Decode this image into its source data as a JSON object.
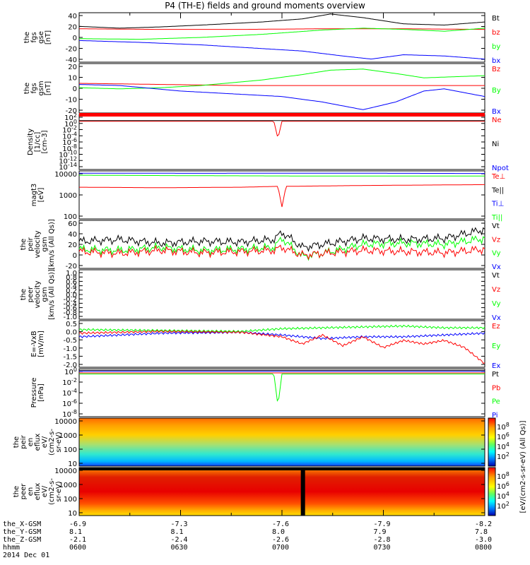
{
  "title": "P4 (TH-E) fields and ground moments overview",
  "colors": {
    "black": "#000000",
    "red": "#ff0000",
    "green": "#00ff00",
    "blue": "#0000ff"
  },
  "chart_data": [
    {
      "type": "line",
      "ylabel": [
        "the",
        "fgs",
        "gse",
        "[nT]"
      ],
      "yticks": [
        "40",
        "20",
        "0",
        "-20",
        "-40"
      ],
      "ylim": [
        -40,
        40
      ],
      "legend": [
        {
          "label": "Bt",
          "color": "black"
        },
        {
          "label": "bz",
          "color": "red"
        },
        {
          "label": "by",
          "color": "green"
        },
        {
          "label": "bx",
          "color": "blue"
        }
      ],
      "series": [
        {
          "color": "black",
          "x": [
            0,
            0.1,
            0.2,
            0.3,
            0.45,
            0.55,
            0.62,
            0.7,
            0.8,
            0.9,
            1.0
          ],
          "y": [
            18,
            15,
            17,
            20,
            25,
            30,
            38,
            32,
            22,
            20,
            25
          ]
        },
        {
          "color": "red",
          "x": [
            0,
            0.2,
            0.4,
            0.6,
            0.8,
            1.0
          ],
          "y": [
            14,
            13,
            13,
            14,
            14,
            13
          ]
        },
        {
          "color": "green",
          "x": [
            0,
            0.15,
            0.3,
            0.45,
            0.6,
            0.7,
            0.8,
            0.9,
            1.0
          ],
          "y": [
            -2,
            -3,
            0,
            5,
            12,
            15,
            13,
            10,
            15
          ]
        },
        {
          "color": "blue",
          "x": [
            0,
            0.15,
            0.3,
            0.45,
            0.55,
            0.65,
            0.72,
            0.8,
            0.9,
            1.0
          ],
          "y": [
            -5,
            -8,
            -12,
            -18,
            -22,
            -30,
            -35,
            -28,
            -30,
            -35
          ]
        }
      ]
    },
    {
      "type": "line",
      "ylabel": [
        "the",
        "fgs",
        "gsm",
        "[nT]"
      ],
      "yticks": [
        "20",
        "10",
        "0",
        "-10",
        "-20"
      ],
      "ylim": [
        -25,
        20
      ],
      "legend": [
        {
          "label": "Bz",
          "color": "red"
        },
        {
          "label": "By",
          "color": "green"
        },
        {
          "label": "Bx",
          "color": "blue"
        }
      ],
      "series": [
        {
          "color": "red",
          "x": [
            0,
            0.2,
            0.4,
            0.6,
            0.8,
            1.0
          ],
          "y": [
            2,
            1,
            0,
            0,
            0,
            0
          ]
        },
        {
          "color": "green",
          "x": [
            0,
            0.1,
            0.2,
            0.3,
            0.45,
            0.55,
            0.62,
            0.7,
            0.78,
            0.85,
            1.0
          ],
          "y": [
            -2,
            -3,
            -2,
            0,
            5,
            10,
            14,
            15,
            11,
            7,
            9
          ]
        },
        {
          "color": "blue",
          "x": [
            0,
            0.1,
            0.25,
            0.4,
            0.5,
            0.6,
            0.7,
            0.78,
            0.85,
            0.9,
            1.0
          ],
          "y": [
            1,
            0,
            -5,
            -8,
            -10,
            -15,
            -22,
            -15,
            -5,
            -3,
            -10
          ]
        }
      ]
    },
    {
      "type": "line",
      "ylabel": [
        "Density",
        "[1/cc]",
        "[cm-3]"
      ],
      "yticks": [
        "10^2",
        "10^0",
        "10^-2",
        "10^-4",
        "10^-6",
        "10^-8",
        "10^-10",
        "10^-12",
        "10^-14"
      ],
      "ylim": [
        -14,
        2
      ],
      "legend": [
        {
          "label": "Ne",
          "color": "red"
        },
        {
          "label": "Ni",
          "color": "black"
        },
        {
          "label": "Npot",
          "color": "blue"
        }
      ],
      "series": [
        {
          "color": "red",
          "x": [
            0,
            0.48,
            0.49,
            0.5,
            0.52,
            1.0
          ],
          "y": [
            0,
            0,
            -5,
            0,
            0,
            0
          ]
        },
        {
          "color": "black",
          "x": [
            0,
            1.0
          ],
          "y": [
            0.2,
            0.2
          ]
        }
      ]
    },
    {
      "type": "line",
      "ylabel": [
        "magt3",
        "[eV]"
      ],
      "yticks": [
        "10000",
        "1000",
        "100"
      ],
      "ylim": [
        1.3,
        4.1
      ],
      "legend": [
        {
          "label": "Te⊥",
          "color": "red"
        },
        {
          "label": "Te||",
          "color": "black"
        },
        {
          "label": "Ti⊥",
          "color": "blue"
        },
        {
          "label": "Ti||",
          "color": "green"
        }
      ],
      "series": [
        {
          "color": "blue",
          "x": [
            0,
            0.3,
            0.6,
            1.0
          ],
          "y": [
            3.97,
            3.96,
            3.97,
            3.95
          ]
        },
        {
          "color": "green",
          "x": [
            0,
            0.3,
            0.6,
            1.0
          ],
          "y": [
            3.85,
            3.82,
            3.8,
            3.8
          ]
        },
        {
          "color": "red",
          "x": [
            0,
            0.2,
            0.4,
            0.49,
            0.5,
            0.51,
            0.7,
            1.0
          ],
          "y": [
            3.15,
            3.12,
            3.15,
            3.2,
            2.0,
            3.2,
            3.25,
            3.3
          ]
        }
      ]
    },
    {
      "type": "line",
      "ylabel": [
        "the",
        "peir",
        "velocity",
        "gsm",
        "[km/s (All Qs)]"
      ],
      "yticks": [
        "60",
        "40",
        "20",
        "0",
        "-20"
      ],
      "ylim": [
        -20,
        60
      ],
      "legend": [
        {
          "label": "Vt",
          "color": "black"
        },
        {
          "label": "Vz",
          "color": "red"
        },
        {
          "label": "Vy",
          "color": "green"
        },
        {
          "label": "Vx",
          "color": "blue"
        }
      ],
      "series": [
        {
          "color": "black",
          "x": [
            0,
            0.1,
            0.2,
            0.3,
            0.4,
            0.48,
            0.5,
            0.55,
            0.6,
            0.7,
            0.8,
            0.9,
            1.0
          ],
          "y": [
            25,
            28,
            22,
            25,
            24,
            28,
            40,
            15,
            20,
            30,
            28,
            30,
            45
          ]
        },
        {
          "color": "green",
          "x": [
            0,
            0.1,
            0.2,
            0.3,
            0.4,
            0.48,
            0.5,
            0.55,
            0.6,
            0.7,
            0.8,
            0.9,
            1.0
          ],
          "y": [
            12,
            10,
            15,
            10,
            12,
            15,
            30,
            0,
            5,
            20,
            22,
            20,
            30
          ]
        },
        {
          "color": "red",
          "x": [
            0,
            0.1,
            0.2,
            0.3,
            0.4,
            0.48,
            0.5,
            0.55,
            0.6,
            0.7,
            0.8,
            0.9,
            1.0
          ],
          "y": [
            8,
            5,
            10,
            6,
            8,
            10,
            15,
            2,
            5,
            10,
            8,
            6,
            12
          ]
        }
      ]
    },
    {
      "type": "line",
      "ylabel": [
        "the",
        "peer",
        "velocity",
        "gsm",
        "[km/s (All Qs)]"
      ],
      "yticks": [
        "1.0",
        "0.8",
        "0.6",
        "0.4",
        "0.2",
        "0.0",
        "-0.2",
        "-0.4",
        "-0.6",
        "-0.8",
        "-1.0"
      ],
      "ylim": [
        -1,
        1
      ],
      "legend": [
        {
          "label": "Vt",
          "color": "black"
        },
        {
          "label": "Vz",
          "color": "red"
        },
        {
          "label": "Vy",
          "color": "green"
        },
        {
          "label": "Vx",
          "color": "blue"
        }
      ],
      "series": []
    },
    {
      "type": "line",
      "ylabel": [
        "E=-VxB",
        "[mV/m]"
      ],
      "yticks": [
        "0.5",
        "0.0",
        "-0.5",
        "-1.0",
        "-1.5",
        "-2.0"
      ],
      "ylim": [
        -2,
        0.6
      ],
      "legend": [
        {
          "label": "Ez",
          "color": "red"
        },
        {
          "label": "Ey",
          "color": "green"
        },
        {
          "label": "Ex",
          "color": "blue"
        }
      ],
      "series": [
        {
          "color": "green",
          "x": [
            0,
            0.2,
            0.4,
            0.5,
            0.6,
            0.7,
            0.8,
            0.9,
            1.0
          ],
          "y": [
            0.1,
            0.05,
            0.0,
            0.15,
            0.2,
            0.25,
            0.3,
            0.2,
            0.2
          ]
        },
        {
          "color": "blue",
          "x": [
            0,
            0.2,
            0.4,
            0.5,
            0.6,
            0.7,
            0.8,
            0.9,
            1.0
          ],
          "y": [
            -0.3,
            -0.1,
            -0.05,
            -0.2,
            -0.4,
            -0.3,
            -0.3,
            -0.2,
            -0.1
          ]
        },
        {
          "color": "red",
          "x": [
            0,
            0.2,
            0.4,
            0.5,
            0.55,
            0.6,
            0.65,
            0.7,
            0.75,
            0.8,
            0.85,
            0.9,
            0.95,
            1.0
          ],
          "y": [
            -0.1,
            0.0,
            -0.05,
            -0.3,
            -0.7,
            -0.2,
            -0.8,
            -0.3,
            -0.9,
            -0.5,
            -0.7,
            -0.5,
            -0.9,
            -1.8
          ]
        }
      ]
    },
    {
      "type": "line",
      "ylabel": [
        "Pressure",
        "[nPa]"
      ],
      "yticks": [
        "10^0",
        "10^-2",
        "10^-4",
        "10^-6",
        "10^-8"
      ],
      "ylim": [
        -8.6,
        0.5
      ],
      "legend": [
        {
          "label": "Pt",
          "color": "black"
        },
        {
          "label": "Pb",
          "color": "red"
        },
        {
          "label": "Pe",
          "color": "green"
        },
        {
          "label": "Pi",
          "color": "blue"
        }
      ],
      "series": [
        {
          "color": "black",
          "x": [
            0,
            1.0
          ],
          "y": [
            0.2,
            0.2
          ]
        },
        {
          "color": "red",
          "x": [
            0,
            1.0
          ],
          "y": [
            -0.3,
            -0.3
          ]
        },
        {
          "color": "blue",
          "x": [
            0,
            1.0
          ],
          "y": [
            0.0,
            0.0
          ]
        },
        {
          "color": "green",
          "x": [
            0,
            0.48,
            0.49,
            0.5,
            0.51,
            1.0
          ],
          "y": [
            -0.5,
            -0.5,
            -6.5,
            -0.5,
            -0.5,
            -0.5
          ]
        }
      ]
    },
    {
      "type": "heatmap",
      "ylabel": [
        "the",
        "peir",
        "en",
        "eflux",
        "eV/",
        "(cm2-s-",
        "sr-eV)"
      ],
      "yticks": [
        "10000",
        "1000",
        "100",
        "10"
      ]
    },
    {
      "type": "heatmap",
      "ylabel": [
        "the",
        "peer",
        "en",
        "eflux",
        "eV/",
        "(cm2-s-",
        "sr-eV)"
      ],
      "yticks": [
        "10000",
        "1000",
        "100",
        "10"
      ]
    }
  ],
  "colorbar": {
    "ticks": [
      "10^8",
      "10^6",
      "10^4",
      "10^2"
    ],
    "ticks2": [
      "10^8",
      "10^6",
      "10^4",
      "10^2"
    ],
    "label": "[eV/(cm2-s-sr-eV) (All Qs)]"
  },
  "xaxis": {
    "row_labels": [
      "the_X-GSM",
      "the_Y-GSM",
      "the_Z-GSM",
      "hhmm",
      "2014 Dec 01"
    ],
    "columns": [
      {
        "values": [
          "-6.9",
          "8.1",
          "-2.1",
          "0600"
        ]
      },
      {
        "values": [
          "-7.3",
          "8.1",
          "-2.4",
          "0630"
        ]
      },
      {
        "values": [
          "-7.6",
          "8.0",
          "-2.6",
          "0700"
        ]
      },
      {
        "values": [
          "-7.9",
          "7.9",
          "-2.8",
          "0730"
        ]
      },
      {
        "values": [
          "-8.2",
          "7.8",
          "-3.0",
          "0800"
        ]
      }
    ]
  }
}
